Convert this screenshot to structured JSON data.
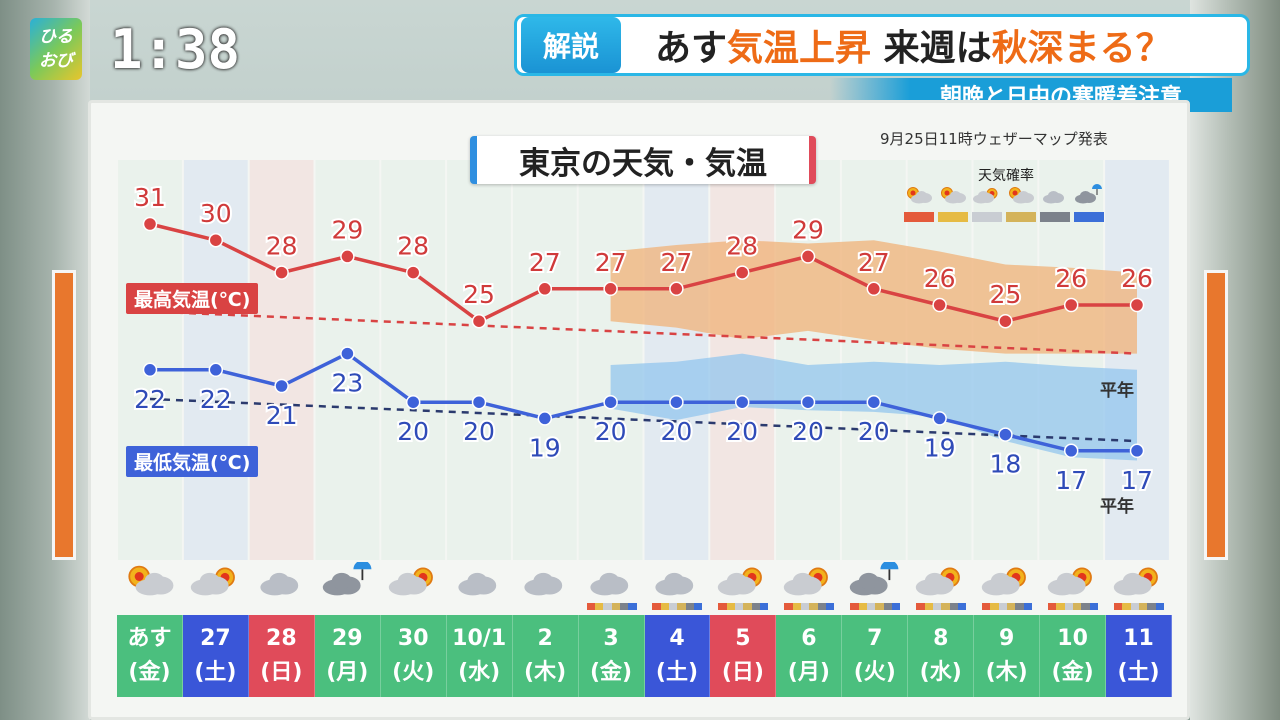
{
  "header": {
    "logo_line1": "ひる",
    "logo_line2": "おび",
    "clock": "1:38",
    "tag": "解説",
    "title_parts": [
      "あす",
      "気温上昇",
      " 来週は",
      "秋深まる？"
    ],
    "subtitle": "朝晩と日中の寒暖差注意"
  },
  "board": {
    "title": "東京の天気・気温",
    "issued": "9月25日11時ウェザーマップ発表",
    "legend_title": "天気確率",
    "hi_label": "最高気温(℃)",
    "lo_label": "最低気温(℃)",
    "normal_label": "平年"
  },
  "colors": {
    "high": "#d94343",
    "low": "#3e62d9",
    "weekday": "#4bbf7e",
    "saturday": "#3a56d8",
    "sunday": "#e04b5a",
    "range_high": "#f0b278",
    "range_low": "#93c6ee"
  },
  "days": [
    {
      "date": "あす",
      "dow": "(金)",
      "type": "weekday",
      "weather": "sun-cloud"
    },
    {
      "date": "27",
      "dow": "(土)",
      "type": "sat",
      "weather": "cloud-sun"
    },
    {
      "date": "28",
      "dow": "(日)",
      "type": "sun",
      "weather": "cloud"
    },
    {
      "date": "29",
      "dow": "(月)",
      "type": "weekday",
      "weather": "cloud-rain"
    },
    {
      "date": "30",
      "dow": "(火)",
      "type": "weekday",
      "weather": "cloud-sun"
    },
    {
      "date": "10/1",
      "dow": "(水)",
      "type": "weekday",
      "weather": "cloud"
    },
    {
      "date": "2",
      "dow": "(木)",
      "type": "weekday",
      "weather": "cloud"
    },
    {
      "date": "3",
      "dow": "(金)",
      "type": "weekday",
      "weather": "cloud"
    },
    {
      "date": "4",
      "dow": "(土)",
      "type": "sat",
      "weather": "cloud"
    },
    {
      "date": "5",
      "dow": "(日)",
      "type": "sun",
      "weather": "cloud-sun"
    },
    {
      "date": "6",
      "dow": "(月)",
      "type": "weekday",
      "weather": "cloud-sun"
    },
    {
      "date": "7",
      "dow": "(火)",
      "type": "weekday",
      "weather": "cloud-rain"
    },
    {
      "date": "8",
      "dow": "(水)",
      "type": "weekday",
      "weather": "cloud-sun"
    },
    {
      "date": "9",
      "dow": "(木)",
      "type": "weekday",
      "weather": "cloud-sun"
    },
    {
      "date": "10",
      "dow": "(金)",
      "type": "weekday",
      "weather": "cloud-sun"
    },
    {
      "date": "11",
      "dow": "(土)",
      "type": "sat",
      "weather": "cloud-sun"
    }
  ],
  "chart_data": {
    "type": "line",
    "title": "東京の天気・気温",
    "categories": [
      "あす",
      "27",
      "28",
      "29",
      "30",
      "10/1",
      "2",
      "3",
      "4",
      "5",
      "6",
      "7",
      "8",
      "9",
      "10",
      "11"
    ],
    "series": [
      {
        "name": "最高気温(℃)",
        "values": [
          31,
          30,
          28,
          29,
          28,
          25,
          27,
          27,
          27,
          28,
          29,
          27,
          26,
          25,
          26,
          26
        ]
      },
      {
        "name": "最低気温(℃)",
        "values": [
          22,
          22,
          21,
          23,
          20,
          20,
          19,
          20,
          20,
          20,
          20,
          20,
          19,
          18,
          17,
          17
        ]
      }
    ],
    "normal": {
      "high_start": 25.6,
      "high_end": 23.0,
      "low_start": 20.2,
      "low_end": 17.6
    },
    "high_range": {
      "from_index": 7,
      "upper": [
        29.3,
        29.7,
        30.0,
        29.8,
        30.0,
        29.3,
        28.5,
        28.3,
        28.0
      ],
      "lower": [
        25.0,
        24.6,
        23.9,
        24.4,
        23.8,
        23.3,
        23.0,
        23.0,
        23.0
      ]
    },
    "low_range": {
      "from_index": 7,
      "upper": [
        22.3,
        22.5,
        23.0,
        22.3,
        22.5,
        22.3,
        22.5,
        22.2,
        22.0
      ],
      "lower": [
        19.6,
        18.9,
        19.7,
        19.5,
        19.4,
        19.1,
        17.6,
        16.6,
        16.4
      ]
    },
    "ylim": [
      15,
      33
    ]
  }
}
